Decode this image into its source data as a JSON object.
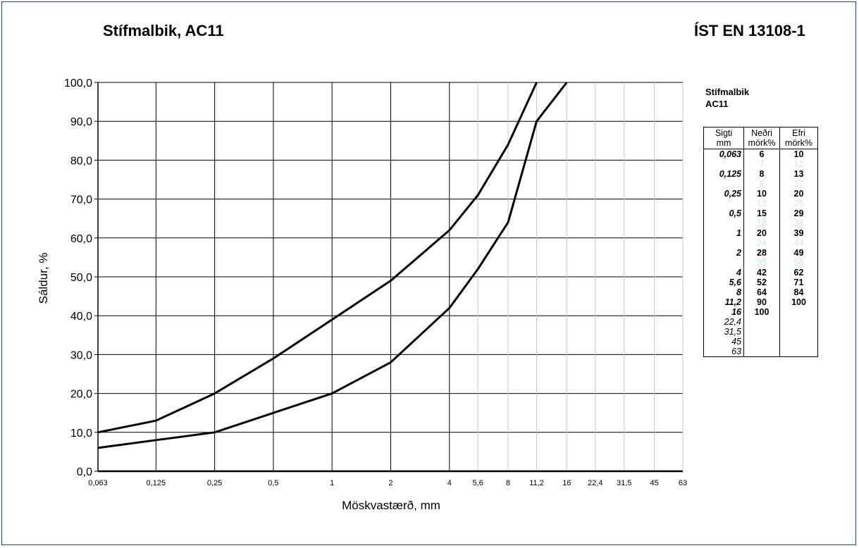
{
  "header": {
    "title_left": "Stífmalbik, AC11",
    "title_right": "ÍST EN 13108-1"
  },
  "chart_data": {
    "type": "line",
    "xscale": "log",
    "xlabel": "Möskvastærð, mm",
    "ylabel": "Sáldur, %",
    "ylim": [
      0,
      100
    ],
    "yticks": [
      "0,0",
      "10,0",
      "20,0",
      "30,0",
      "40,0",
      "50,0",
      "60,0",
      "70,0",
      "80,0",
      "90,0",
      "100,0"
    ],
    "x": [
      0.063,
      0.125,
      0.25,
      0.5,
      1,
      2,
      4,
      5.6,
      8,
      11.2,
      16,
      22.4,
      31.5,
      45,
      63
    ],
    "xtick_labels": [
      "0,063",
      "0,125",
      "0,25",
      "0,5",
      "1",
      "2",
      "4",
      "5,6",
      "8",
      "11,2",
      "16",
      "22,4",
      "31,5",
      "45",
      "63"
    ],
    "grid": true,
    "series": [
      {
        "x": [
          0.063,
          0.125,
          0.25,
          0.5,
          1,
          2,
          4,
          5.6,
          8,
          11.2
        ],
        "values": [
          10,
          13,
          20,
          29,
          39,
          49,
          62,
          71,
          84,
          100
        ]
      },
      {
        "x": [
          0.063,
          0.125,
          0.25,
          0.5,
          1,
          2,
          4,
          5.6,
          8,
          11.2,
          16
        ],
        "values": [
          6,
          8,
          10,
          15,
          20,
          28,
          42,
          52,
          64,
          90,
          100
        ]
      }
    ]
  },
  "side_table": {
    "title_line1": "Stífmalbik",
    "title_line2": "AC11",
    "headers": [
      {
        "top": "Sigti",
        "bottom": "mm"
      },
      {
        "top": "Neðri",
        "bottom": "mörk%"
      },
      {
        "top": "Efri",
        "bottom": "mörk%"
      }
    ],
    "rows": [
      {
        "sieve": "0,063",
        "lower": "6",
        "upper": "10",
        "style": "main"
      },
      {
        "sieve": "",
        "lower": "7",
        "upper": "12",
        "style": "faint"
      },
      {
        "sieve": "0,125",
        "lower": "8",
        "upper": "13",
        "style": "main"
      },
      {
        "sieve": "",
        "lower": "9",
        "upper": "17",
        "style": "faint"
      },
      {
        "sieve": "0,25",
        "lower": "10",
        "upper": "20",
        "style": "main"
      },
      {
        "sieve": "",
        "lower": "13",
        "upper": "25",
        "style": "faint"
      },
      {
        "sieve": "0,5",
        "lower": "15",
        "upper": "29",
        "style": "main"
      },
      {
        "sieve": "",
        "lower": "18",
        "upper": "34",
        "style": "faint"
      },
      {
        "sieve": "1",
        "lower": "20",
        "upper": "39",
        "style": "main"
      },
      {
        "sieve": "",
        "lower": "24",
        "upper": "44",
        "style": "faint"
      },
      {
        "sieve": "2",
        "lower": "28",
        "upper": "49",
        "style": "main"
      },
      {
        "sieve": "",
        "lower": "35",
        "upper": "56",
        "style": "faint"
      },
      {
        "sieve": "4",
        "lower": "42",
        "upper": "62",
        "style": "main"
      },
      {
        "sieve": "5,6",
        "lower": "52",
        "upper": "71",
        "style": "main"
      },
      {
        "sieve": "8",
        "lower": "64",
        "upper": "84",
        "style": "main"
      },
      {
        "sieve": "11,2",
        "lower": "90",
        "upper": "100",
        "style": "main"
      },
      {
        "sieve": "16",
        "lower": "100",
        "upper": "",
        "style": "main"
      },
      {
        "sieve": "22,4",
        "lower": "",
        "upper": "",
        "style": "plain"
      },
      {
        "sieve": "31,5",
        "lower": "",
        "upper": "",
        "style": "plain"
      },
      {
        "sieve": "45",
        "lower": "",
        "upper": "",
        "style": "plain"
      },
      {
        "sieve": "63",
        "lower": "",
        "upper": "",
        "style": "plain"
      }
    ]
  },
  "colors": {
    "border": "#2b3f8c",
    "faint_text": "#cfe6ee"
  }
}
